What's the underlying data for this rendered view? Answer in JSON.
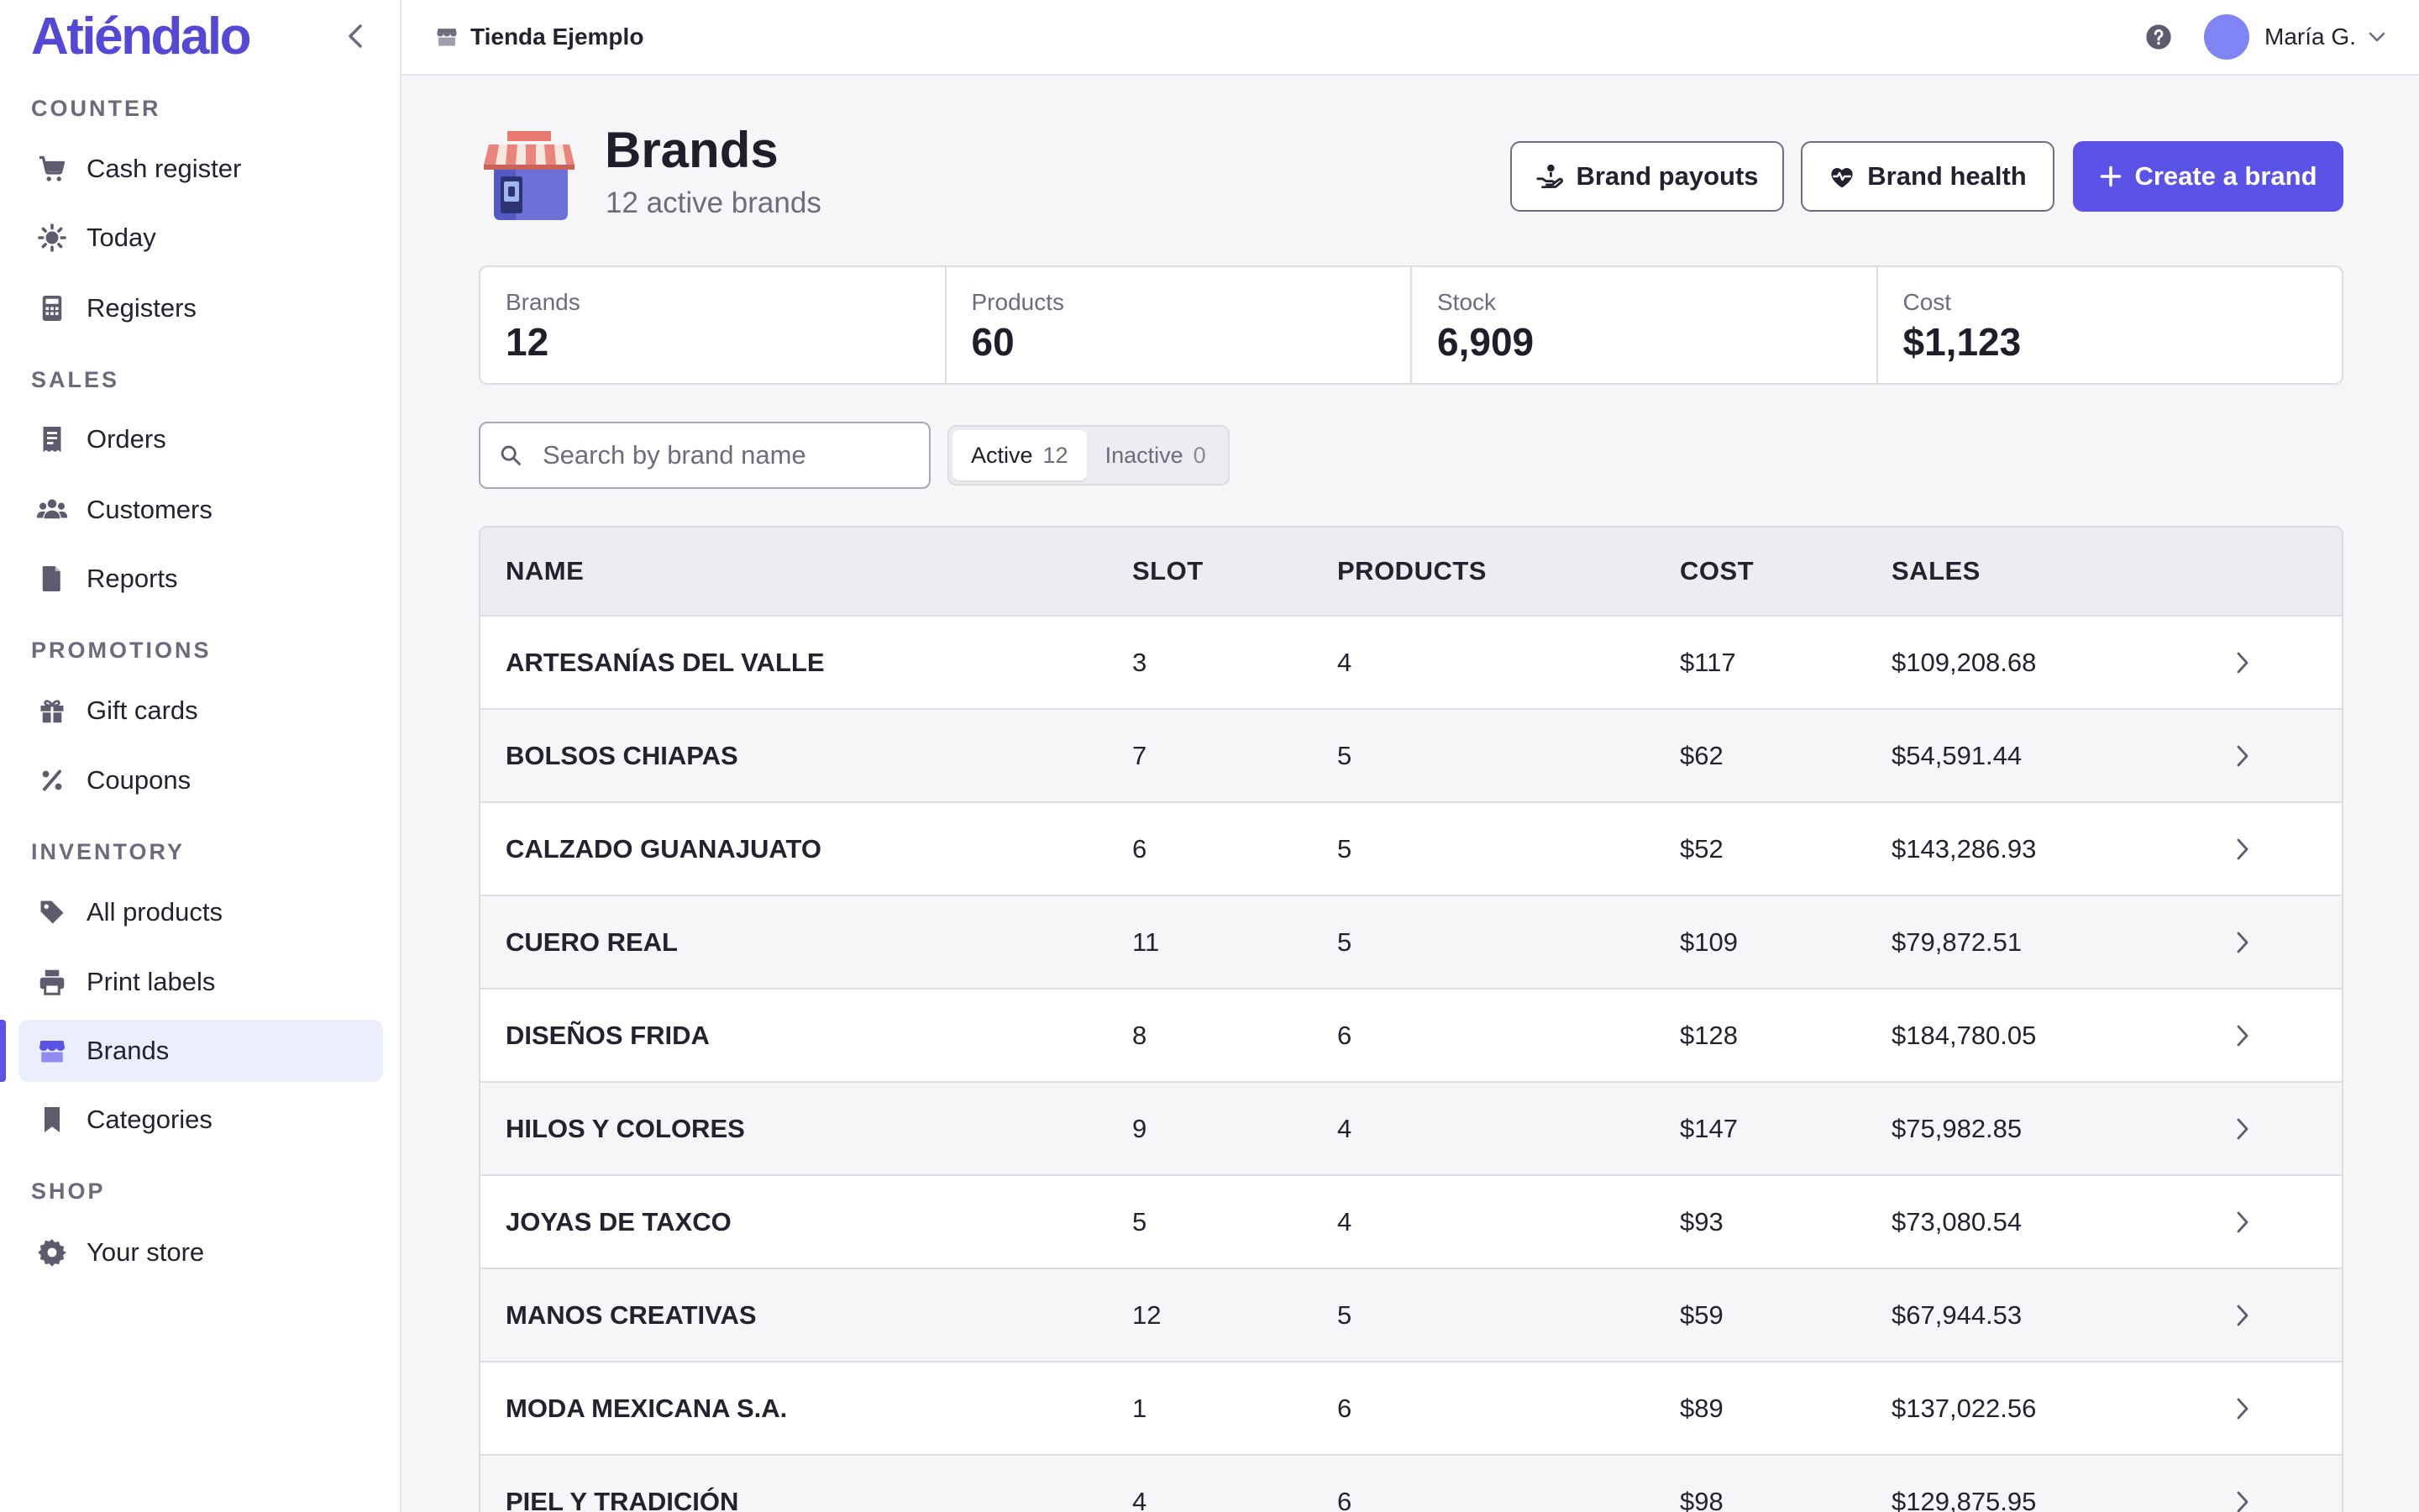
{
  "app": {
    "logo": "Atiéndalo"
  },
  "sidebar": {
    "sections": [
      {
        "title": "COUNTER",
        "items": [
          {
            "label": "Cash register",
            "icon": "cart-icon"
          },
          {
            "label": "Today",
            "icon": "sun-icon"
          },
          {
            "label": "Registers",
            "icon": "calculator-icon"
          }
        ]
      },
      {
        "title": "SALES",
        "items": [
          {
            "label": "Orders",
            "icon": "receipt-icon"
          },
          {
            "label": "Customers",
            "icon": "users-icon"
          },
          {
            "label": "Reports",
            "icon": "document-icon"
          }
        ]
      },
      {
        "title": "PROMOTIONS",
        "items": [
          {
            "label": "Gift cards",
            "icon": "gift-icon"
          },
          {
            "label": "Coupons",
            "icon": "percent-icon"
          }
        ]
      },
      {
        "title": "INVENTORY",
        "items": [
          {
            "label": "All products",
            "icon": "tag-icon"
          },
          {
            "label": "Print labels",
            "icon": "printer-icon"
          },
          {
            "label": "Brands",
            "icon": "storefront-icon",
            "active": true
          },
          {
            "label": "Categories",
            "icon": "bookmark-icon"
          }
        ]
      },
      {
        "title": "SHOP",
        "items": [
          {
            "label": "Your store",
            "icon": "gear-icon"
          }
        ]
      }
    ]
  },
  "topbar": {
    "store": "Tienda Ejemplo",
    "user": "María G."
  },
  "page": {
    "title": "Brands",
    "subtitle": "12 active brands",
    "buttons": {
      "payouts": "Brand payouts",
      "health": "Brand health",
      "create": "Create a brand"
    }
  },
  "stats": [
    {
      "label": "Brands",
      "value": "12"
    },
    {
      "label": "Products",
      "value": "60"
    },
    {
      "label": "Stock",
      "value": "6,909"
    },
    {
      "label": "Cost",
      "value": "$1,123"
    }
  ],
  "filters": {
    "search_placeholder": "Search by brand name",
    "search_value": "",
    "tabs": [
      {
        "label": "Active",
        "count": "12",
        "selected": true
      },
      {
        "label": "Inactive",
        "count": "0",
        "selected": false
      }
    ]
  },
  "table": {
    "headers": {
      "name": "NAME",
      "slot": "SLOT",
      "products": "PRODUCTS",
      "cost": "COST",
      "sales": "SALES"
    },
    "rows": [
      {
        "name": "ARTESANÍAS DEL VALLE",
        "slot": "3",
        "products": "4",
        "cost": "$117",
        "sales": "$109,208.68"
      },
      {
        "name": "BOLSOS CHIAPAS",
        "slot": "7",
        "products": "5",
        "cost": "$62",
        "sales": "$54,591.44"
      },
      {
        "name": "CALZADO GUANAJUATO",
        "slot": "6",
        "products": "5",
        "cost": "$52",
        "sales": "$143,286.93"
      },
      {
        "name": "CUERO REAL",
        "slot": "11",
        "products": "5",
        "cost": "$109",
        "sales": "$79,872.51"
      },
      {
        "name": "DISEÑOS FRIDA",
        "slot": "8",
        "products": "6",
        "cost": "$128",
        "sales": "$184,780.05"
      },
      {
        "name": "HILOS Y COLORES",
        "slot": "9",
        "products": "4",
        "cost": "$147",
        "sales": "$75,982.85"
      },
      {
        "name": "JOYAS DE TAXCO",
        "slot": "5",
        "products": "4",
        "cost": "$93",
        "sales": "$73,080.54"
      },
      {
        "name": "MANOS CREATIVAS",
        "slot": "12",
        "products": "5",
        "cost": "$59",
        "sales": "$67,944.53"
      },
      {
        "name": "MODA MEXICANA S.A.",
        "slot": "1",
        "products": "6",
        "cost": "$89",
        "sales": "$137,022.56"
      },
      {
        "name": "PIEL Y TRADICIÓN",
        "slot": "4",
        "products": "6",
        "cost": "$98",
        "sales": "$129,875.95"
      }
    ]
  },
  "colors": {
    "accent": "#5b52e8",
    "logo": "#5448d6",
    "active_bg": "#ebeefc",
    "avatar": "#7f85f4"
  }
}
